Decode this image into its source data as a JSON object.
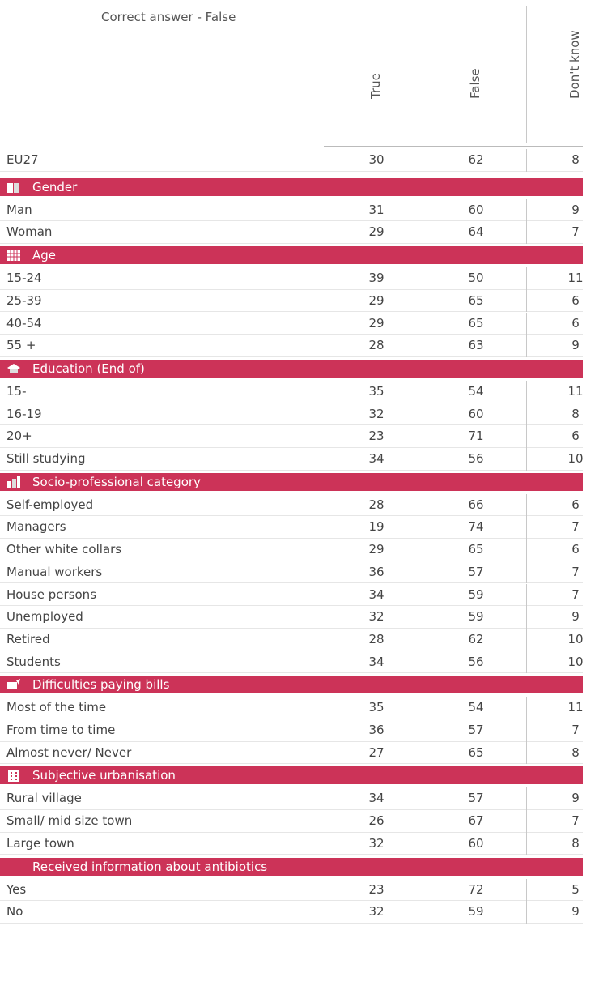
{
  "header": {
    "note": "Correct answer - False",
    "columns": [
      "True",
      "False",
      "Don't know"
    ]
  },
  "total": {
    "label": "EU27",
    "values": [
      30,
      62,
      8
    ]
  },
  "groups": [
    {
      "title": "Gender",
      "rows": [
        {
          "label": "Man",
          "values": [
            31,
            60,
            9
          ]
        },
        {
          "label": "Woman",
          "values": [
            29,
            64,
            7
          ]
        }
      ]
    },
    {
      "title": "Age",
      "rows": [
        {
          "label": "15-24",
          "values": [
            39,
            50,
            11
          ]
        },
        {
          "label": "25-39",
          "values": [
            29,
            65,
            6
          ]
        },
        {
          "label": "40-54",
          "values": [
            29,
            65,
            6
          ]
        },
        {
          "label": "55 +",
          "values": [
            28,
            63,
            9
          ]
        }
      ]
    },
    {
      "title": "Education (End of)",
      "rows": [
        {
          "label": "15-",
          "values": [
            35,
            54,
            11
          ]
        },
        {
          "label": "16-19",
          "values": [
            32,
            60,
            8
          ]
        },
        {
          "label": "20+",
          "values": [
            23,
            71,
            6
          ]
        },
        {
          "label": "Still studying",
          "values": [
            34,
            56,
            10
          ]
        }
      ]
    },
    {
      "title": "Socio-professional category",
      "rows": [
        {
          "label": "Self-employed",
          "values": [
            28,
            66,
            6
          ]
        },
        {
          "label": "Managers",
          "values": [
            19,
            74,
            7
          ]
        },
        {
          "label": "Other white collars",
          "values": [
            29,
            65,
            6
          ]
        },
        {
          "label": "Manual workers",
          "values": [
            36,
            57,
            7
          ]
        },
        {
          "label": "House persons",
          "values": [
            34,
            59,
            7
          ]
        },
        {
          "label": "Unemployed",
          "values": [
            32,
            59,
            9
          ]
        },
        {
          "label": "Retired",
          "values": [
            28,
            62,
            10
          ]
        },
        {
          "label": "Students",
          "values": [
            34,
            56,
            10
          ]
        }
      ]
    },
    {
      "title": "Difficulties paying bills",
      "rows": [
        {
          "label": "Most of the time",
          "values": [
            35,
            54,
            11
          ]
        },
        {
          "label": "From time to time",
          "values": [
            36,
            57,
            7
          ]
        },
        {
          "label": "Almost never/ Never",
          "values": [
            27,
            65,
            8
          ]
        }
      ]
    },
    {
      "title": "Subjective urbanisation",
      "rows": [
        {
          "label": "Rural village",
          "values": [
            34,
            57,
            9
          ]
        },
        {
          "label": "Small/ mid size town",
          "values": [
            26,
            67,
            7
          ]
        },
        {
          "label": "Large town",
          "values": [
            32,
            60,
            8
          ]
        }
      ]
    },
    {
      "title": "Received information about antibiotics",
      "rows": [
        {
          "label": "Yes",
          "values": [
            23,
            72,
            5
          ]
        },
        {
          "label": "No",
          "values": [
            32,
            59,
            9
          ]
        }
      ]
    }
  ]
}
